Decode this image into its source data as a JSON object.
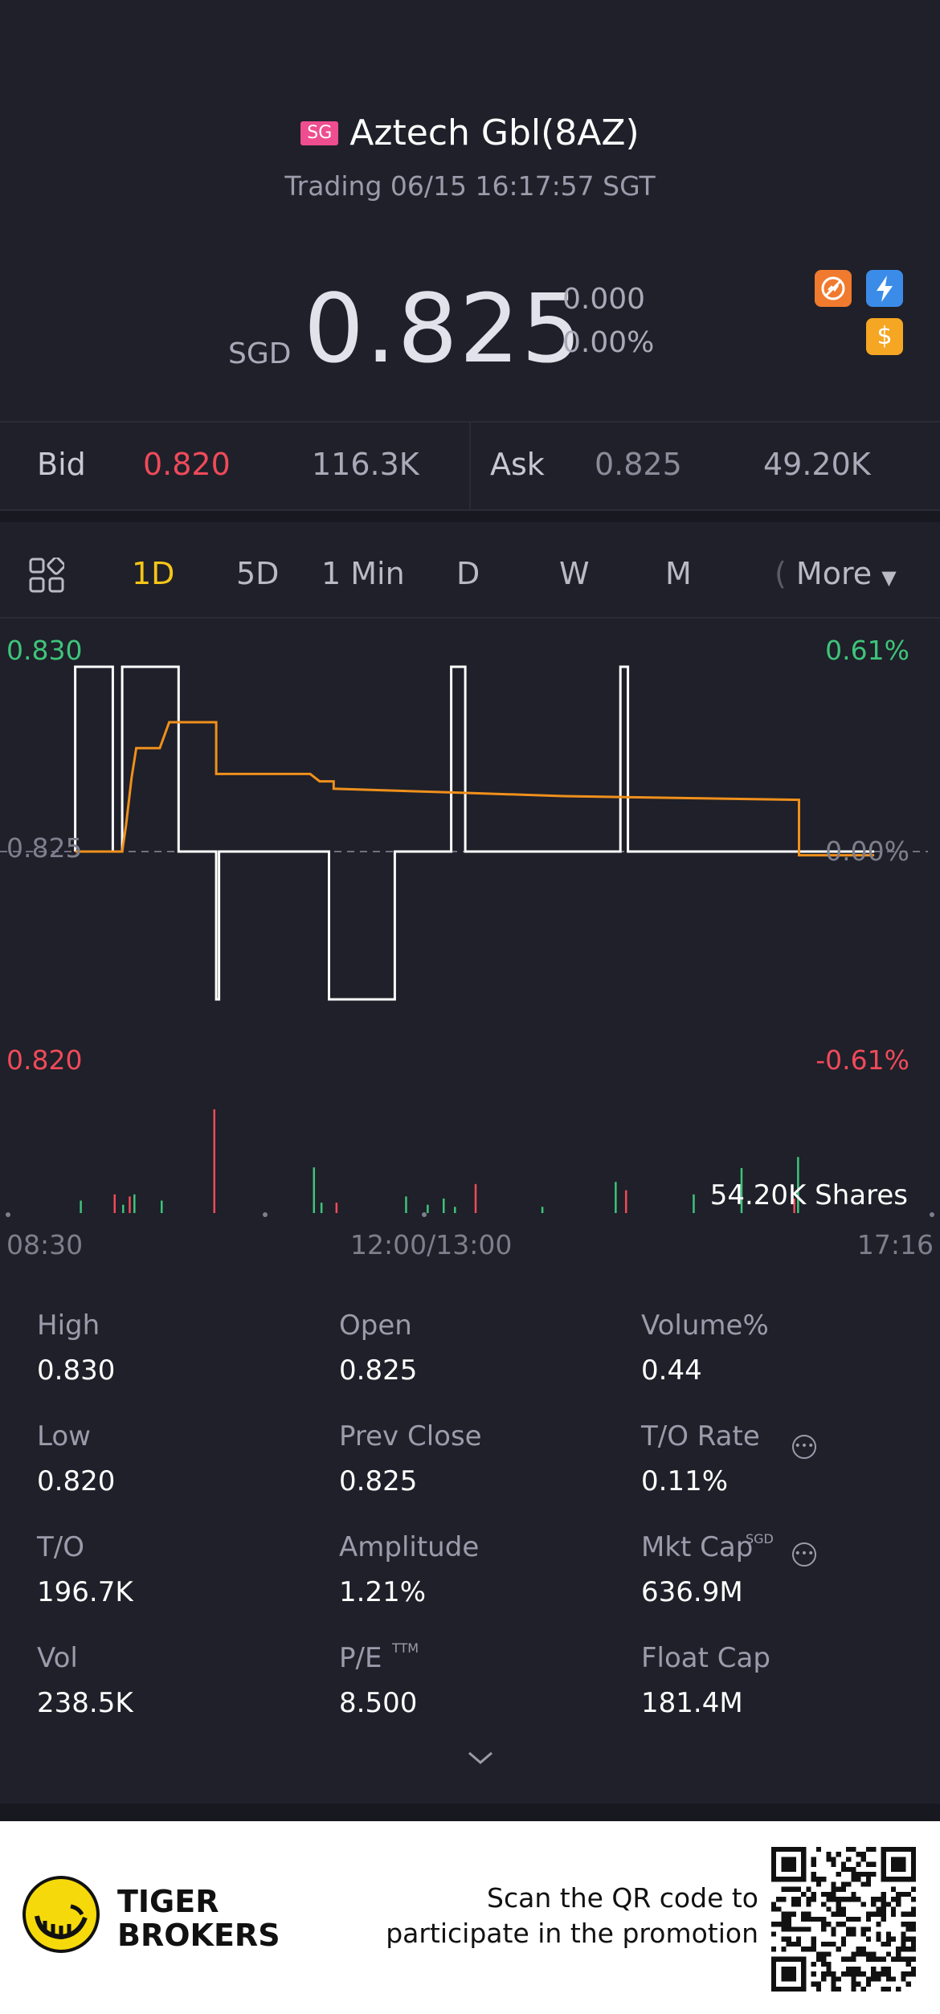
{
  "header": {
    "market_badge": "SG",
    "title": "Aztech Gbl(8AZ)",
    "status": "Trading 06/15 16:17:57 SGT"
  },
  "price": {
    "currency": "SGD",
    "last": "0.825",
    "change": "0.000",
    "change_pct": "0.00%",
    "icons": [
      "no-short-icon",
      "lightning-icon",
      "dollar-icon"
    ]
  },
  "quote": {
    "bid_label": "Bid",
    "bid_price": "0.820",
    "bid_size": "116.3K",
    "ask_label": "Ask",
    "ask_price": "0.825",
    "ask_size": "49.20K"
  },
  "tabs": {
    "items": [
      "1D",
      "5D",
      "1 Min",
      "D",
      "W",
      "M",
      "More"
    ],
    "active": "1D"
  },
  "chart": {
    "y_max": "0.830",
    "y_mid": "0.825",
    "y_min": "0.820",
    "pct_max": "0.61%",
    "pct_mid": "0.00%",
    "pct_min": "-0.61%",
    "volume_readout": "54.20K Shares",
    "x_start": "08:30",
    "x_mid": "12:00/13:00",
    "x_end": "17:16"
  },
  "chart_data": {
    "type": "line",
    "ylim": [
      0.82,
      0.83
    ],
    "prev_close": 0.825,
    "x_range": [
      0,
      100
    ],
    "series": [
      {
        "color": "#ffffff",
        "points": [
          [
            8,
            0.825
          ],
          [
            8,
            0.83
          ],
          [
            12,
            0.83
          ],
          [
            12,
            0.825
          ],
          [
            13,
            0.825
          ],
          [
            13,
            0.83
          ],
          [
            19,
            0.83
          ],
          [
            19,
            0.825
          ],
          [
            23,
            0.825
          ],
          [
            23,
            0.821
          ],
          [
            23.3,
            0.821
          ],
          [
            23.3,
            0.825
          ],
          [
            35,
            0.825
          ],
          [
            35,
            0.821
          ],
          [
            42,
            0.821
          ],
          [
            42,
            0.825
          ],
          [
            48,
            0.825
          ],
          [
            48,
            0.83
          ],
          [
            49.5,
            0.83
          ],
          [
            49.5,
            0.825
          ],
          [
            66,
            0.825
          ],
          [
            66,
            0.83
          ],
          [
            66.8,
            0.83
          ],
          [
            66.8,
            0.825
          ],
          [
            93,
            0.825
          ]
        ]
      },
      {
        "color": "#f0901c",
        "points": [
          [
            8,
            0.825
          ],
          [
            13,
            0.825
          ],
          [
            13.4,
            0.8257
          ],
          [
            14,
            0.827
          ],
          [
            14.5,
            0.8278
          ],
          [
            17,
            0.8278
          ],
          [
            18,
            0.8285
          ],
          [
            23,
            0.8285
          ],
          [
            23,
            0.8271
          ],
          [
            33,
            0.8271
          ],
          [
            34,
            0.8269
          ],
          [
            35.5,
            0.8269
          ],
          [
            35.5,
            0.8267
          ],
          [
            48,
            0.8266
          ],
          [
            60,
            0.8265
          ],
          [
            85,
            0.8264
          ],
          [
            85,
            0.8249
          ],
          [
            93,
            0.8249
          ]
        ]
      }
    ],
    "volume": {
      "max": 54.2,
      "bars": [
        {
          "x": 8.6,
          "v": 6,
          "c": "green"
        },
        {
          "x": 12.2,
          "v": 9,
          "c": "red"
        },
        {
          "x": 13.1,
          "v": 4,
          "c": "green"
        },
        {
          "x": 13.8,
          "v": 8,
          "c": "red"
        },
        {
          "x": 14.3,
          "v": 9,
          "c": "green"
        },
        {
          "x": 17.2,
          "v": 6,
          "c": "green"
        },
        {
          "x": 22.8,
          "v": 50,
          "c": "red"
        },
        {
          "x": 33.4,
          "v": 22,
          "c": "green"
        },
        {
          "x": 34.2,
          "v": 5,
          "c": "green"
        },
        {
          "x": 35.8,
          "v": 5,
          "c": "red"
        },
        {
          "x": 43.2,
          "v": 8,
          "c": "green"
        },
        {
          "x": 45.5,
          "v": 4,
          "c": "green"
        },
        {
          "x": 47.2,
          "v": 7,
          "c": "green"
        },
        {
          "x": 48.4,
          "v": 3,
          "c": "green"
        },
        {
          "x": 50.6,
          "v": 14,
          "c": "red"
        },
        {
          "x": 57.7,
          "v": 3,
          "c": "green"
        },
        {
          "x": 65.5,
          "v": 15,
          "c": "green"
        },
        {
          "x": 66.6,
          "v": 11,
          "c": "red"
        },
        {
          "x": 73.8,
          "v": 9,
          "c": "green"
        },
        {
          "x": 84.5,
          "v": 7,
          "c": "red"
        },
        {
          "x": 84.9,
          "v": 27,
          "c": "green"
        }
      ]
    }
  },
  "stats": [
    {
      "label": "High",
      "value": "0.830"
    },
    {
      "label": "Open",
      "value": "0.825"
    },
    {
      "label": "Volume%",
      "value": "0.44"
    },
    {
      "label": "Low",
      "value": "0.820"
    },
    {
      "label": "Prev Close",
      "value": "0.825"
    },
    {
      "label": "T/O Rate",
      "value": "0.11%"
    },
    {
      "label": "T/O",
      "value": "196.7K"
    },
    {
      "label": "Amplitude",
      "value": "1.21%"
    },
    {
      "label": "Mkt Cap",
      "value": "636.9M",
      "sup": "SGD"
    },
    {
      "label": "Vol",
      "value": "238.5K"
    },
    {
      "label": "P/E",
      "value": "8.500",
      "sup": "TTM"
    },
    {
      "label": "Float Cap",
      "value": "181.4M"
    }
  ],
  "promo": {
    "brand_line1": "TIGER",
    "brand_line2": "BROKERS",
    "text_line1": "Scan the QR code to",
    "text_line2": "participate in the promotion"
  },
  "colors": {
    "background": "#1f2029",
    "up": "#3ec47a",
    "down": "#f04a5a",
    "active_tab": "#f5c518",
    "avg_line": "#f0901c"
  }
}
